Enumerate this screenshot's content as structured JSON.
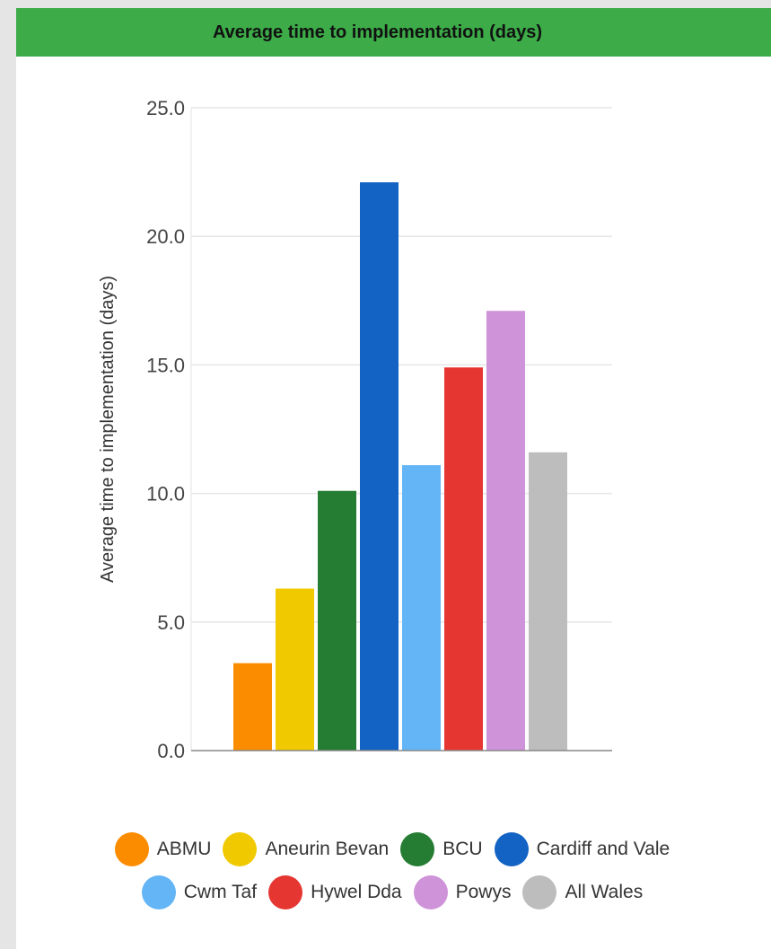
{
  "header": {
    "title": "Average time to implementation (days)"
  },
  "chart_data": {
    "type": "bar",
    "title": "Average time to implementation (days)",
    "xlabel": "",
    "ylabel": "Average time to implementation (days)",
    "ylim": [
      0,
      25
    ],
    "y_ticks": [
      "0.0",
      "5.0",
      "10.0",
      "15.0",
      "20.0",
      "25.0"
    ],
    "grid": true,
    "legend_position": "bottom",
    "categories": [
      "ABMU",
      "Aneurin Bevan",
      "BCU",
      "Cardiff and Vale",
      "Cwm Taf",
      "Hywel Dda",
      "Powys",
      "All Wales"
    ],
    "values": [
      3.4,
      6.3,
      10.1,
      22.1,
      11.1,
      14.9,
      17.1,
      11.6
    ],
    "colors": [
      "#fb8c00",
      "#f0c900",
      "#257d33",
      "#1363c4",
      "#64b5f6",
      "#e53632",
      "#ce93d8",
      "#bdbdbd"
    ]
  }
}
